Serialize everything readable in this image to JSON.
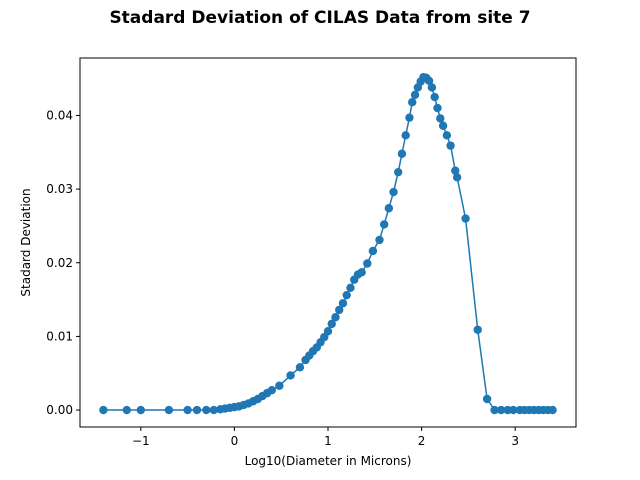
{
  "chart_data": {
    "type": "line",
    "title": "Stadard Deviation of CILAS Data from site 7",
    "xlabel": "Log10(Diameter in Microns)",
    "ylabel": "Stadard Deviation",
    "xlim": [
      -1.65,
      3.65
    ],
    "ylim": [
      -0.0023,
      0.0478
    ],
    "xticks": [
      -1,
      0,
      1,
      2,
      3
    ],
    "xtick_labels": [
      "−1",
      "0",
      "1",
      "2",
      "3"
    ],
    "yticks": [
      0.0,
      0.01,
      0.02,
      0.03,
      0.04
    ],
    "ytick_labels": [
      "0.00",
      "0.01",
      "0.02",
      "0.03",
      "0.04"
    ],
    "grid": false,
    "legend": "none",
    "series_color": "#1f77b4",
    "markers": true,
    "x": [
      -1.4,
      -1.15,
      -1.0,
      -0.7,
      -0.5,
      -0.4,
      -0.3,
      -0.22,
      -0.15,
      -0.1,
      -0.05,
      0.0,
      0.05,
      0.1,
      0.15,
      0.2,
      0.25,
      0.3,
      0.35,
      0.4,
      0.48,
      0.6,
      0.7,
      0.76,
      0.8,
      0.84,
      0.88,
      0.92,
      0.96,
      1.0,
      1.04,
      1.08,
      1.12,
      1.16,
      1.2,
      1.24,
      1.28,
      1.32,
      1.36,
      1.42,
      1.48,
      1.55,
      1.6,
      1.65,
      1.7,
      1.75,
      1.79,
      1.83,
      1.87,
      1.9,
      1.93,
      1.96,
      1.99,
      2.02,
      2.05,
      2.08,
      2.11,
      2.14,
      2.17,
      2.2,
      2.23,
      2.27,
      2.31,
      2.36,
      2.38,
      2.47,
      2.6,
      2.7,
      2.78,
      2.85,
      2.92,
      2.98,
      3.05,
      3.1,
      3.15,
      3.2,
      3.25,
      3.3,
      3.35,
      3.4
    ],
    "y": [
      0.0,
      0.0,
      0.0,
      0.0,
      0.0,
      0.0,
      0.0,
      0.0,
      0.0001,
      0.0002,
      0.0003,
      0.0004,
      0.0005,
      0.0007,
      0.0009,
      0.0012,
      0.0015,
      0.0019,
      0.0023,
      0.0027,
      0.0033,
      0.0047,
      0.0058,
      0.0068,
      0.0074,
      0.008,
      0.0085,
      0.0092,
      0.0099,
      0.0107,
      0.0117,
      0.0126,
      0.0136,
      0.0145,
      0.0156,
      0.0166,
      0.0177,
      0.0184,
      0.0187,
      0.0199,
      0.0216,
      0.0231,
      0.0252,
      0.0274,
      0.0296,
      0.0323,
      0.0348,
      0.0373,
      0.0397,
      0.0418,
      0.0428,
      0.0438,
      0.0446,
      0.0452,
      0.0451,
      0.0447,
      0.0438,
      0.0425,
      0.041,
      0.0396,
      0.0386,
      0.0373,
      0.0359,
      0.0325,
      0.0316,
      0.026,
      0.0109,
      0.0015,
      0.0,
      0.0,
      0.0,
      0.0,
      0.0,
      0.0,
      0.0,
      0.0,
      0.0,
      0.0,
      0.0,
      0.0
    ]
  }
}
